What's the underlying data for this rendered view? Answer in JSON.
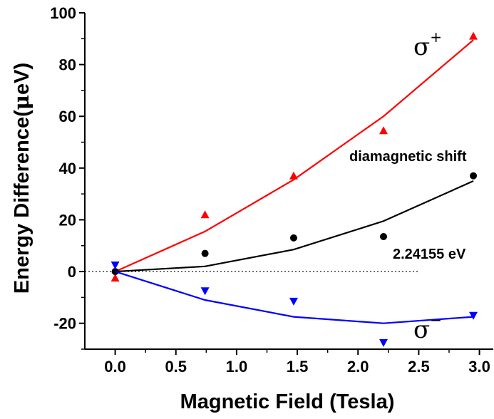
{
  "chart_data": {
    "type": "line",
    "xlabel": "Magnetic Field (Tesla)",
    "ylabel_prefix": "Energy Difference(",
    "ylabel_mu": "μ",
    "ylabel_suffix": "eV)",
    "xlim": [
      -0.25,
      3.12
    ],
    "ylim": [
      -30,
      100
    ],
    "xticks": [
      "0.0",
      "0.5",
      "1.0",
      "1.5",
      "2.0",
      "2.5",
      "3.0"
    ],
    "xtick_values": [
      0.0,
      0.5,
      1.0,
      1.5,
      2.0,
      2.5,
      3.0
    ],
    "yticks": [
      "-20",
      "0",
      "20",
      "40",
      "60",
      "80",
      "100"
    ],
    "ytick_values": [
      -20,
      0,
      20,
      40,
      60,
      80,
      100
    ],
    "grid": false,
    "reference_line": {
      "y": 0,
      "x_range": [
        -0.25,
        2.5
      ],
      "style": "dotted",
      "label": "2.24155 eV"
    },
    "series": [
      {
        "key": "sigma_plus",
        "color": "#ff0000",
        "marker": "triangle-up",
        "points_x": [
          0.0,
          0.74,
          1.47,
          2.21,
          2.95
        ],
        "points_y": [
          -2.5,
          22,
          37,
          54.5,
          91
        ],
        "fit_x": [
          0.0,
          0.74,
          1.47,
          2.21,
          2.95
        ],
        "fit_y": [
          0,
          15.5,
          35.5,
          60,
          89.5
        ],
        "label_symbol": "σ",
        "label_sup": "+"
      },
      {
        "key": "diamagnetic",
        "color": "#000000",
        "marker": "circle",
        "points_x": [
          0.0,
          0.74,
          1.47,
          2.21,
          2.95
        ],
        "points_y": [
          0,
          7,
          13,
          13.5,
          37
        ],
        "fit_x": [
          0.0,
          0.74,
          1.47,
          2.21,
          2.95
        ],
        "fit_y": [
          0,
          2,
          8.5,
          19.5,
          35
        ],
        "label": "diamagnetic shift"
      },
      {
        "key": "sigma_minus",
        "color": "#0000ff",
        "marker": "triangle-down",
        "points_x": [
          0.0,
          0.74,
          1.47,
          2.21,
          2.95
        ],
        "points_y": [
          2.5,
          -7.5,
          -11.5,
          -27.5,
          -17
        ],
        "fit_x": [
          0.0,
          0.74,
          1.47,
          2.21,
          2.95
        ],
        "fit_y": [
          0,
          -11,
          -17.5,
          -20,
          -17.5
        ],
        "label_symbol": "σ",
        "label_sup": "−"
      }
    ]
  }
}
